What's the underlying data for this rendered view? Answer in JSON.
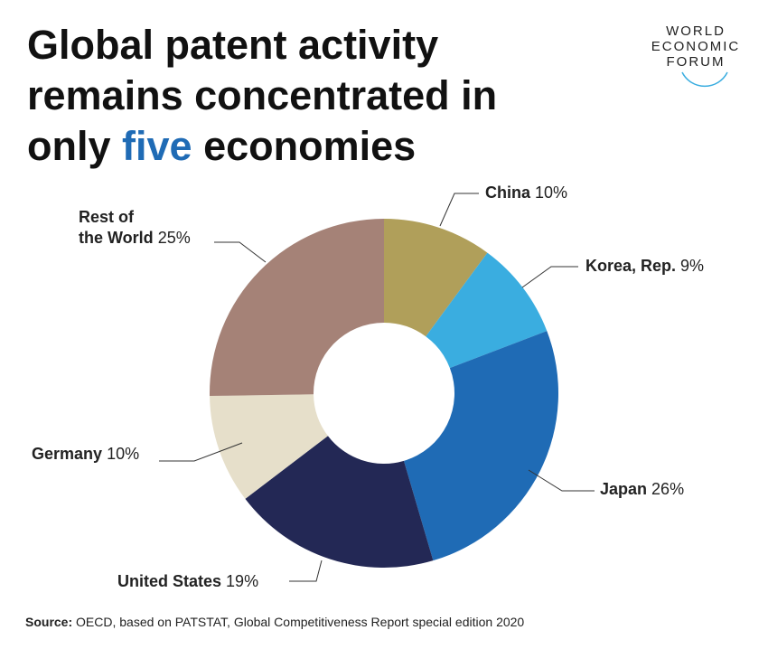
{
  "chart_data": {
    "type": "donut",
    "title": {
      "before": "Global patent activity remains concentrated in only",
      "highlight": "five",
      "after": "economies"
    },
    "categories": [
      "China",
      "Korea, Rep.",
      "Japan",
      "United States",
      "Germany",
      "Rest of\nthe World"
    ],
    "values": [
      10,
      9,
      26,
      19,
      10,
      25
    ],
    "value_labels": [
      "10%",
      "9%",
      "26%",
      "19%",
      "10%",
      "25%"
    ],
    "colors": [
      "#b09f5a",
      "#3aade0",
      "#1f6bb5",
      "#232855",
      "#e6dfca",
      "#a58277"
    ],
    "highlight_color": "#1f6bb5",
    "logo": [
      "WORLD",
      "ECONOMIC",
      "FORUM"
    ],
    "source_label": "Source:",
    "source": "OECD, based on PATSTAT, Global Competitiveness Report special edition 2020"
  }
}
